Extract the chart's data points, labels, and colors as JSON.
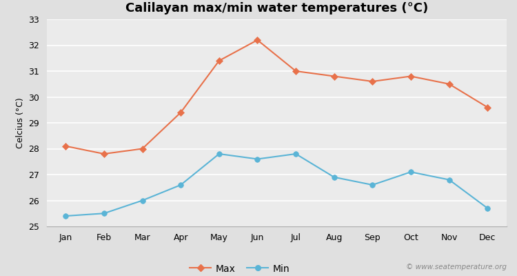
{
  "title": "Calilayan max/min water temperatures (°C)",
  "ylabel": "Celcius (°C)",
  "months": [
    "Jan",
    "Feb",
    "Mar",
    "Apr",
    "May",
    "Jun",
    "Jul",
    "Aug",
    "Sep",
    "Oct",
    "Nov",
    "Dec"
  ],
  "max_temps": [
    28.1,
    27.8,
    28.0,
    29.4,
    31.4,
    32.2,
    31.0,
    30.8,
    30.6,
    30.8,
    30.5,
    29.6
  ],
  "min_temps": [
    25.4,
    25.5,
    26.0,
    26.6,
    27.8,
    27.6,
    27.8,
    26.9,
    26.6,
    27.1,
    26.8,
    25.7
  ],
  "max_color": "#e8714a",
  "min_color": "#5ab4d6",
  "fig_bg_color": "#e0e0e0",
  "plot_bg_color": "#ebebeb",
  "grid_color": "#ffffff",
  "ylim": [
    25,
    33
  ],
  "yticks": [
    25,
    26,
    27,
    28,
    29,
    30,
    31,
    32,
    33
  ],
  "legend_labels": [
    "Max",
    "Min"
  ],
  "watermark": "© www.seatemperature.org",
  "title_fontsize": 13,
  "axis_label_fontsize": 9,
  "tick_fontsize": 9,
  "legend_fontsize": 10
}
